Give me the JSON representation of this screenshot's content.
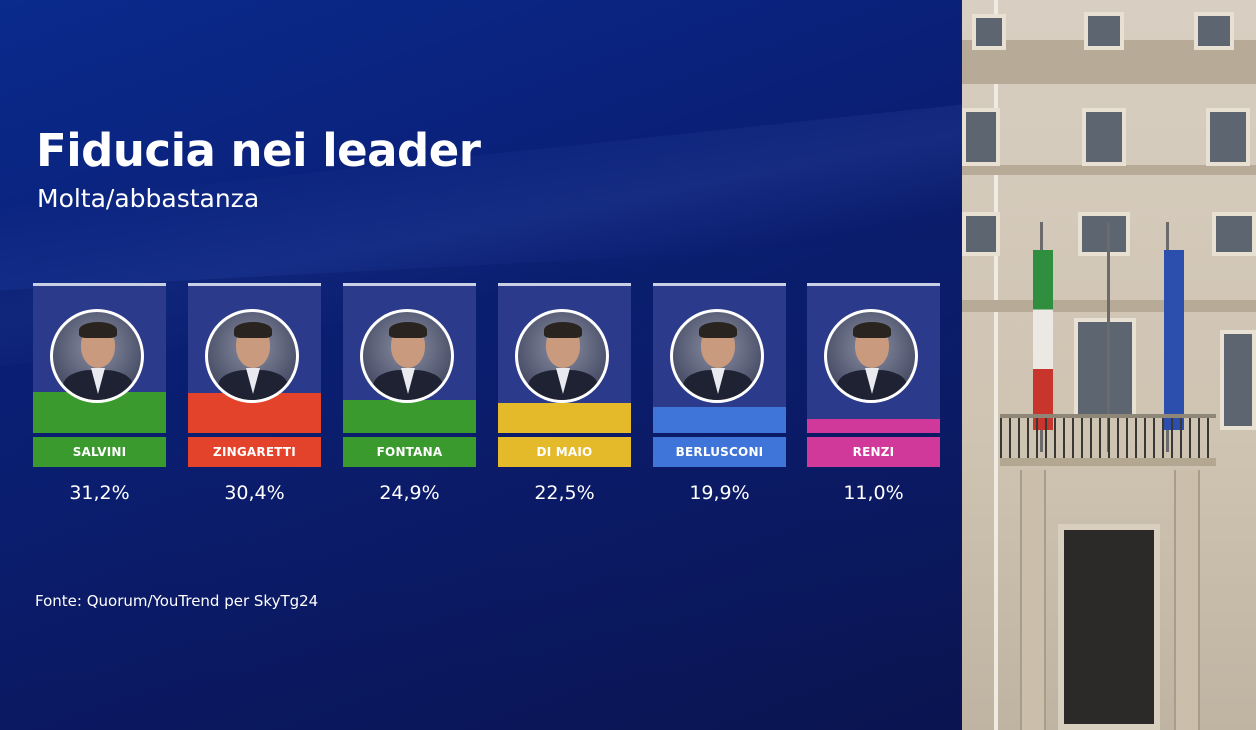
{
  "chart_data": {
    "type": "bar",
    "title": "Fiducia nei leader",
    "subtitle": "Molta/abbastanza",
    "source": "Fonte: Quorum/YouTrend per SkyTg24",
    "categories": [
      "SALVINI",
      "ZINGARETTI",
      "FONTANA",
      "DI MAIO",
      "BERLUSCONI",
      "RENZI"
    ],
    "values": [
      31.2,
      30.4,
      24.9,
      22.5,
      19.9,
      11.0
    ],
    "value_labels": [
      "31,2%",
      "30,4%",
      "24,9%",
      "22,5%",
      "19,9%",
      "11,0%"
    ],
    "ylim": [
      0,
      35
    ],
    "colors": [
      "#3a9a2e",
      "#e3432a",
      "#3a9a2e",
      "#e4b92a",
      "#3f74d8",
      "#d0399a"
    ],
    "icons": [
      "portrait",
      "portrait",
      "portrait",
      "portrait",
      "portrait",
      "portrait"
    ]
  }
}
